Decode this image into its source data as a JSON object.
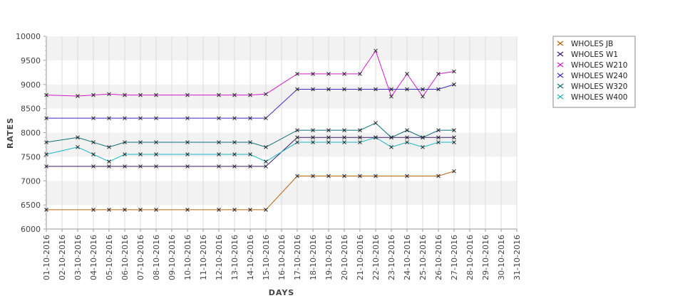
{
  "chart_data": {
    "type": "line",
    "xlabel": "DAYS",
    "ylabel": "RATES",
    "ylim": [
      6000,
      10000
    ],
    "yticks": [
      6000,
      6500,
      7000,
      7500,
      8000,
      8500,
      9000,
      9500,
      10000
    ],
    "grid": true,
    "legend_position": "right",
    "categories": [
      "01-10-2016",
      "02-10-2016",
      "03-10-2016",
      "04-10-2016",
      "05-10-2016",
      "06-10-2016",
      "07-10-2016",
      "08-10-2016",
      "09-10-2016",
      "10-10-2016",
      "11-10-2016",
      "12-10-2016",
      "13-10-2016",
      "14-10-2016",
      "15-10-2016",
      "16-10-2016",
      "17-10-2016",
      "18-10-2016",
      "19-10-2016",
      "20-10-2016",
      "21-10-2016",
      "22-10-2016",
      "23-10-2016",
      "24-10-2016",
      "25-10-2016",
      "26-10-2016",
      "27-10-2016",
      "28-10-2016",
      "29-10-2016",
      "30-10-2016",
      "31-10-2016"
    ],
    "series": [
      {
        "name": "WHOLES JB",
        "color": "#b8620a",
        "values": [
          6400,
          null,
          null,
          6400,
          6400,
          6400,
          6400,
          6400,
          null,
          6400,
          null,
          6400,
          6400,
          6400,
          6400,
          null,
          7100,
          7100,
          7100,
          7100,
          7100,
          7100,
          null,
          7100,
          null,
          7100,
          7200,
          null,
          null,
          null,
          null
        ]
      },
      {
        "name": "WHOLES W1",
        "color": "#3c1a6e",
        "values": [
          7300,
          null,
          null,
          7300,
          7300,
          7300,
          7300,
          7300,
          null,
          7300,
          null,
          7300,
          7300,
          7300,
          7300,
          null,
          7900,
          7900,
          7900,
          7900,
          7900,
          7900,
          7900,
          7900,
          7900,
          7900,
          7900,
          null,
          null,
          null,
          null
        ]
      },
      {
        "name": "WHOLES W210",
        "color": "#d21cc8",
        "values": [
          8780,
          null,
          8760,
          8780,
          8800,
          8780,
          8780,
          8780,
          null,
          8780,
          null,
          8780,
          8780,
          8780,
          8800,
          null,
          9220,
          9220,
          9220,
          9220,
          9220,
          9700,
          8750,
          9220,
          8750,
          9220,
          9270,
          null,
          null,
          null,
          null
        ]
      },
      {
        "name": "WHOLES W240",
        "color": "#3a2fc0",
        "values": [
          8300,
          null,
          null,
          8300,
          8300,
          8300,
          8300,
          8300,
          null,
          8300,
          null,
          8300,
          8300,
          8300,
          8300,
          null,
          8900,
          8900,
          8900,
          8900,
          8900,
          8900,
          8900,
          8900,
          8900,
          8900,
          9000,
          null,
          null,
          null,
          null
        ]
      },
      {
        "name": "WHOLES W320",
        "color": "#0f6e78",
        "values": [
          7800,
          null,
          7900,
          7800,
          7700,
          7800,
          7800,
          7800,
          null,
          7800,
          null,
          7800,
          7800,
          7800,
          7700,
          null,
          8050,
          8050,
          8050,
          8050,
          8050,
          8200,
          7900,
          8050,
          7900,
          8050,
          8050,
          null,
          null,
          null,
          null
        ]
      },
      {
        "name": "WHOLES W400",
        "color": "#1ab6c4",
        "values": [
          7550,
          null,
          7700,
          7550,
          7400,
          7550,
          7550,
          7550,
          null,
          7550,
          null,
          7550,
          7550,
          7550,
          7400,
          null,
          7800,
          7800,
          7800,
          7800,
          7800,
          7900,
          7700,
          7800,
          7700,
          7800,
          7800,
          null,
          null,
          null,
          null
        ]
      }
    ]
  }
}
